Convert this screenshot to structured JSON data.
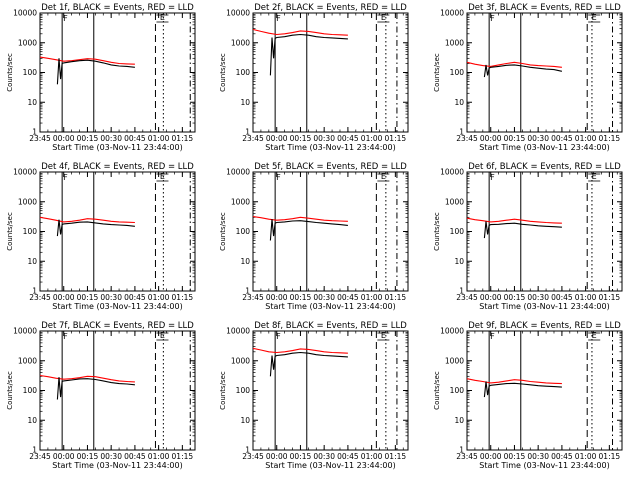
{
  "chart_data": [
    {
      "type": "line",
      "title": "Det 1f, BLACK = Events, RED = LLD",
      "xlabel": "Start Time (03-Nov-11 23:44:00)",
      "ylabel": "Counts/sec",
      "xticks": [
        "23:45",
        "00:00",
        "00:15",
        "00:30",
        "00:45",
        "01:00",
        "01:15"
      ],
      "yticks": [
        "1",
        "10",
        "100",
        "1000",
        "10000"
      ],
      "ylim": [
        1,
        10000
      ],
      "yscale": "log",
      "xlim": [
        "23:45",
        "01:23"
      ],
      "markers": {
        "solid": [
          "23:59",
          "00:19"
        ],
        "dashed": [
          "00:58"
        ],
        "dotted": [
          "01:03"
        ],
        "dashdot": [
          "01:20"
        ]
      },
      "top_label": "F",
      "bracket_label": "E",
      "series": [
        {
          "color": "#ff0000",
          "x": [
            "23:45",
            "23:50",
            "23:55",
            "00:00",
            "00:05",
            "00:10",
            "00:15",
            "00:20",
            "00:25",
            "00:30",
            "00:35",
            "00:40",
            "00:45"
          ],
          "values": [
            330,
            300,
            270,
            240,
            250,
            270,
            290,
            280,
            250,
            220,
            200,
            195,
            190
          ]
        },
        {
          "color": "#000000",
          "x": [
            "23:56",
            "23:57",
            "23:58",
            "23:59",
            "00:00",
            "00:05",
            "00:10",
            "00:15",
            "00:20",
            "00:25",
            "00:30",
            "00:35",
            "00:40",
            "00:45"
          ],
          "values": [
            40,
            300,
            60,
            200,
            210,
            230,
            250,
            260,
            240,
            210,
            180,
            165,
            160,
            150
          ]
        }
      ]
    },
    {
      "type": "line",
      "title": "Det 2f, BLACK = Events, RED = LLD",
      "xlabel": "Start Time (03-Nov-11 23:44:00)",
      "ylabel": "Counts/sec",
      "xticks": [
        "23:45",
        "00:00",
        "00:15",
        "00:30",
        "00:45",
        "01:00",
        "01:15"
      ],
      "yticks": [
        "1",
        "10",
        "100",
        "1000",
        "10000"
      ],
      "ylim": [
        1,
        10000
      ],
      "yscale": "log",
      "xlim": [
        "23:45",
        "01:23"
      ],
      "markers": {
        "solid": [
          "23:59",
          "00:19"
        ],
        "dashed": [
          "01:03"
        ],
        "dotted": [
          "01:09"
        ],
        "dashdot": [
          "01:16"
        ]
      },
      "top_label": "F",
      "bracket_label": "E",
      "series": [
        {
          "color": "#ff0000",
          "x": [
            "23:45",
            "23:50",
            "23:55",
            "00:00",
            "00:05",
            "00:10",
            "00:15",
            "00:20",
            "00:25",
            "00:30",
            "00:35",
            "00:40",
            "00:45"
          ],
          "values": [
            2800,
            2400,
            2100,
            1900,
            2000,
            2200,
            2500,
            2400,
            2200,
            2000,
            1900,
            1850,
            1800
          ]
        },
        {
          "color": "#000000",
          "x": [
            "23:56",
            "23:57",
            "23:58",
            "23:59",
            "00:00",
            "00:05",
            "00:10",
            "00:15",
            "00:20",
            "00:25",
            "00:30",
            "00:35",
            "00:40",
            "00:45"
          ],
          "values": [
            80,
            1500,
            300,
            1400,
            1500,
            1600,
            1800,
            1900,
            1800,
            1600,
            1500,
            1450,
            1400,
            1350
          ]
        }
      ]
    },
    {
      "type": "line",
      "title": "Det 3f, BLACK = Events, RED = LLD",
      "xlabel": "Start Time (03-Nov-11 23:44:00)",
      "ylabel": "Counts/sec",
      "xticks": [
        "23:45",
        "00:00",
        "00:15",
        "00:30",
        "00:45",
        "01:00",
        "01:15"
      ],
      "yticks": [
        "1",
        "10",
        "100",
        "1000",
        "10000"
      ],
      "ylim": [
        1,
        10000
      ],
      "yscale": "log",
      "xlim": [
        "23:45",
        "01:23"
      ],
      "markers": {
        "solid": [
          "23:59",
          "00:19"
        ],
        "dashed": [
          "01:01"
        ],
        "dotted": [
          "01:04"
        ],
        "dashdot": [
          "01:17"
        ]
      },
      "top_label": "F",
      "bracket_label": "E",
      "series": [
        {
          "color": "#ff0000",
          "x": [
            "23:45",
            "23:50",
            "23:55",
            "00:00",
            "00:05",
            "00:10",
            "00:15",
            "00:20",
            "00:25",
            "00:30",
            "00:35",
            "00:40",
            "00:45"
          ],
          "values": [
            220,
            190,
            170,
            160,
            180,
            200,
            220,
            200,
            180,
            170,
            165,
            160,
            150
          ]
        },
        {
          "color": "#000000",
          "x": [
            "23:56",
            "23:57",
            "23:58",
            "23:59",
            "00:00",
            "00:05",
            "00:10",
            "00:15",
            "00:20",
            "00:25",
            "00:30",
            "00:35",
            "00:40",
            "00:45"
          ],
          "values": [
            70,
            180,
            80,
            140,
            150,
            160,
            175,
            180,
            165,
            150,
            140,
            130,
            125,
            110
          ]
        }
      ]
    },
    {
      "type": "line",
      "title": "Det 4f, BLACK = Events, RED = LLD",
      "xlabel": "Start Time (03-Nov-11 23:44:00)",
      "ylabel": "Counts/sec",
      "xticks": [
        "23:45",
        "00:00",
        "00:15",
        "00:30",
        "00:45",
        "01:00",
        "01:15"
      ],
      "yticks": [
        "1",
        "10",
        "100",
        "1000",
        "10000"
      ],
      "ylim": [
        1,
        10000
      ],
      "yscale": "log",
      "xlim": [
        "23:45",
        "01:23"
      ],
      "markers": {
        "solid": [
          "23:59",
          "00:19"
        ],
        "dashed": [
          "00:58"
        ],
        "dotted": [
          "01:03"
        ],
        "dashdot": [
          "01:20"
        ]
      },
      "top_label": "F",
      "bracket_label": "E",
      "series": [
        {
          "color": "#ff0000",
          "x": [
            "23:45",
            "23:50",
            "23:55",
            "00:00",
            "00:05",
            "00:10",
            "00:15",
            "00:20",
            "00:25",
            "00:30",
            "00:35",
            "00:40",
            "00:45"
          ],
          "values": [
            300,
            270,
            240,
            210,
            220,
            240,
            270,
            260,
            240,
            220,
            210,
            205,
            200
          ]
        },
        {
          "color": "#000000",
          "x": [
            "23:56",
            "23:57",
            "23:58",
            "23:59",
            "00:00",
            "00:05",
            "00:10",
            "00:15",
            "00:20",
            "00:25",
            "00:30",
            "00:35",
            "00:40",
            "00:45"
          ],
          "values": [
            70,
            250,
            80,
            170,
            180,
            190,
            205,
            210,
            195,
            180,
            170,
            165,
            160,
            150
          ]
        }
      ]
    },
    {
      "type": "line",
      "title": "Det 5f, BLACK = Events, RED = LLD",
      "xlabel": "Start Time (03-Nov-11 23:44:00)",
      "ylabel": "Counts/sec",
      "xticks": [
        "23:45",
        "00:00",
        "00:15",
        "00:30",
        "00:45",
        "01:00",
        "01:15"
      ],
      "yticks": [
        "1",
        "10",
        "100",
        "1000",
        "10000"
      ],
      "ylim": [
        1,
        10000
      ],
      "yscale": "log",
      "xlim": [
        "23:45",
        "01:23"
      ],
      "markers": {
        "solid": [
          "23:59",
          "00:19"
        ],
        "dashed": [
          "01:03"
        ],
        "dotted": [
          "01:09"
        ],
        "dashdot": [
          "01:16"
        ]
      },
      "top_label": "F",
      "bracket_label": "E",
      "series": [
        {
          "color": "#ff0000",
          "x": [
            "23:45",
            "23:50",
            "23:55",
            "00:00",
            "00:05",
            "00:10",
            "00:15",
            "00:20",
            "00:25",
            "00:30",
            "00:35",
            "00:40",
            "00:45"
          ],
          "values": [
            320,
            290,
            260,
            240,
            250,
            270,
            300,
            280,
            260,
            240,
            230,
            225,
            220
          ]
        },
        {
          "color": "#000000",
          "x": [
            "23:56",
            "23:57",
            "23:58",
            "23:59",
            "00:00",
            "00:05",
            "00:10",
            "00:15",
            "00:20",
            "00:25",
            "00:30",
            "00:35",
            "00:40",
            "00:45"
          ],
          "values": [
            50,
            260,
            70,
            190,
            200,
            210,
            225,
            230,
            215,
            200,
            190,
            180,
            170,
            160
          ]
        }
      ]
    },
    {
      "type": "line",
      "title": "Det 6f, BLACK = Events, RED = LLD",
      "xlabel": "Start Time (03-Nov-11 23:44:00)",
      "ylabel": "Counts/sec",
      "xticks": [
        "23:45",
        "00:00",
        "00:15",
        "00:30",
        "00:45",
        "01:00",
        "01:15"
      ],
      "yticks": [
        "1",
        "10",
        "100",
        "1000",
        "10000"
      ],
      "ylim": [
        1,
        10000
      ],
      "yscale": "log",
      "xlim": [
        "23:45",
        "01:23"
      ],
      "markers": {
        "solid": [
          "23:59",
          "00:19"
        ],
        "dashed": [
          "01:01"
        ],
        "dotted": [
          "01:04"
        ],
        "dashdot": [
          "01:17"
        ]
      },
      "top_label": "F",
      "bracket_label": "E",
      "series": [
        {
          "color": "#ff0000",
          "x": [
            "23:45",
            "23:50",
            "23:55",
            "00:00",
            "00:05",
            "00:10",
            "00:15",
            "00:20",
            "00:25",
            "00:30",
            "00:35",
            "00:40",
            "00:45"
          ],
          "values": [
            280,
            250,
            230,
            210,
            220,
            240,
            260,
            240,
            220,
            210,
            200,
            195,
            190
          ]
        },
        {
          "color": "#000000",
          "x": [
            "23:56",
            "23:57",
            "23:58",
            "23:59",
            "00:00",
            "00:05",
            "00:10",
            "00:15",
            "00:20",
            "00:25",
            "00:30",
            "00:35",
            "00:40",
            "00:45"
          ],
          "values": [
            60,
            220,
            80,
            160,
            170,
            175,
            185,
            190,
            175,
            165,
            155,
            150,
            145,
            140
          ]
        }
      ]
    },
    {
      "type": "line",
      "title": "Det 7f, BLACK = Events, RED = LLD",
      "xlabel": "Start Time (03-Nov-11 23:44:00)",
      "ylabel": "Counts/sec",
      "xticks": [
        "23:45",
        "00:00",
        "00:15",
        "00:30",
        "00:45",
        "01:00",
        "01:15"
      ],
      "yticks": [
        "1",
        "10",
        "100",
        "1000",
        "10000"
      ],
      "ylim": [
        1,
        10000
      ],
      "yscale": "log",
      "xlim": [
        "23:45",
        "01:23"
      ],
      "markers": {
        "solid": [
          "23:59",
          "00:19"
        ],
        "dashed": [
          "00:58"
        ],
        "dotted": [
          "01:03"
        ],
        "dashdot": [
          "01:20"
        ]
      },
      "top_label": "F",
      "bracket_label": "E",
      "series": [
        {
          "color": "#ff0000",
          "x": [
            "23:45",
            "23:50",
            "23:55",
            "00:00",
            "00:05",
            "00:10",
            "00:15",
            "00:20",
            "00:25",
            "00:30",
            "00:35",
            "00:40",
            "00:45"
          ],
          "values": [
            320,
            290,
            260,
            240,
            250,
            270,
            300,
            290,
            260,
            230,
            210,
            200,
            195
          ]
        },
        {
          "color": "#000000",
          "x": [
            "23:56",
            "23:57",
            "23:58",
            "23:59",
            "00:00",
            "00:05",
            "00:10",
            "00:15",
            "00:20",
            "00:25",
            "00:30",
            "00:35",
            "00:40",
            "00:45"
          ],
          "values": [
            50,
            280,
            60,
            200,
            210,
            225,
            245,
            250,
            235,
            210,
            185,
            170,
            165,
            155
          ]
        }
      ]
    },
    {
      "type": "line",
      "title": "Det 8f, BLACK = Events, RED = LLD",
      "xlabel": "Start Time (03-Nov-11 23:44:00)",
      "ylabel": "Counts/sec",
      "xticks": [
        "23:45",
        "00:00",
        "00:15",
        "00:30",
        "00:45",
        "01:00",
        "01:15"
      ],
      "yticks": [
        "1",
        "10",
        "100",
        "1000",
        "10000"
      ],
      "ylim": [
        1,
        10000
      ],
      "yscale": "log",
      "xlim": [
        "23:45",
        "01:23"
      ],
      "markers": {
        "solid": [
          "23:59",
          "00:19"
        ],
        "dashed": [
          "01:03"
        ],
        "dotted": [
          "01:09"
        ],
        "dashdot": [
          "01:16"
        ]
      },
      "top_label": "F",
      "bracket_label": "E",
      "series": [
        {
          "color": "#ff0000",
          "x": [
            "23:45",
            "23:50",
            "23:55",
            "00:00",
            "00:05",
            "00:10",
            "00:15",
            "00:20",
            "00:25",
            "00:30",
            "00:35",
            "00:40",
            "00:45"
          ],
          "values": [
            2600,
            2300,
            2000,
            1900,
            2000,
            2200,
            2500,
            2400,
            2200,
            2000,
            1900,
            1850,
            1800
          ]
        },
        {
          "color": "#000000",
          "x": [
            "23:56",
            "23:57",
            "23:58",
            "23:59",
            "00:00",
            "00:05",
            "00:10",
            "00:15",
            "00:20",
            "00:25",
            "00:30",
            "00:35",
            "00:40",
            "00:45"
          ],
          "values": [
            300,
            1500,
            500,
            1400,
            1500,
            1600,
            1800,
            1900,
            1800,
            1600,
            1500,
            1450,
            1400,
            1350
          ]
        }
      ]
    },
    {
      "type": "line",
      "title": "Det 9f, BLACK = Events, RED = LLD",
      "xlabel": "Start Time (03-Nov-11 23:44:00)",
      "ylabel": "Counts/sec",
      "xticks": [
        "23:45",
        "00:00",
        "00:15",
        "00:30",
        "00:45",
        "01:00",
        "01:15"
      ],
      "yticks": [
        "1",
        "10",
        "100",
        "1000",
        "10000"
      ],
      "ylim": [
        1,
        10000
      ],
      "yscale": "log",
      "xlim": [
        "23:45",
        "01:23"
      ],
      "markers": {
        "solid": [
          "23:59",
          "00:19"
        ],
        "dashed": [
          "01:01"
        ],
        "dotted": [
          "01:04"
        ],
        "dashdot": [
          "01:17"
        ]
      },
      "top_label": "F",
      "bracket_label": "E",
      "series": [
        {
          "color": "#ff0000",
          "x": [
            "23:45",
            "23:50",
            "23:55",
            "00:00",
            "00:05",
            "00:10",
            "00:15",
            "00:20",
            "00:25",
            "00:30",
            "00:35",
            "00:40",
            "00:45"
          ],
          "values": [
            250,
            220,
            200,
            180,
            190,
            210,
            230,
            220,
            200,
            190,
            180,
            175,
            170
          ]
        },
        {
          "color": "#000000",
          "x": [
            "23:56",
            "23:57",
            "23:58",
            "23:59",
            "00:00",
            "00:05",
            "00:10",
            "00:15",
            "00:20",
            "00:25",
            "00:30",
            "00:35",
            "00:40",
            "00:45"
          ],
          "values": [
            60,
            200,
            70,
            140,
            150,
            160,
            170,
            175,
            165,
            155,
            145,
            140,
            135,
            130
          ]
        }
      ]
    }
  ]
}
